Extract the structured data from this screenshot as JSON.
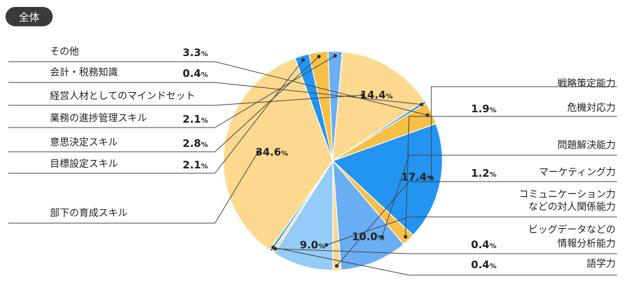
{
  "badge": "全体",
  "chart_data": {
    "type": "pie",
    "title": "全体",
    "unit": "%",
    "slices": [
      {
        "label": "戦略策定能力",
        "value": 17.4,
        "color": "#2394f1"
      },
      {
        "label": "危機対応力",
        "value": 1.9,
        "color": "#f8bf47"
      },
      {
        "label": "問題解決能力",
        "value": 10.0,
        "color": "#6aaef4"
      },
      {
        "label": "マーケティング力",
        "value": 1.2,
        "color": "#fcd891"
      },
      {
        "label": "コミュニケーション力 などの対人関係能力",
        "value": 9.0,
        "color": "#95ccf7"
      },
      {
        "label": "ビッグデータなどの 情報分析能力",
        "value": 0.4,
        "color": "#fcd891"
      },
      {
        "label": "語学力",
        "value": 0.4,
        "color": "#2394f1"
      },
      {
        "label": "部下の育成スキル",
        "value": 34.6,
        "color": "#fdd98f"
      },
      {
        "label": "目標設定スキル",
        "value": 2.1,
        "color": "#2394f1"
      },
      {
        "label": "意思決定スキル",
        "value": 2.8,
        "color": "#f8bf47"
      },
      {
        "label": "業務の進捗管理スキル",
        "value": 2.1,
        "color": "#6aaef4"
      },
      {
        "label": "経営人材としてのマインドセット",
        "value": 14.4,
        "color": "#fdd98f"
      },
      {
        "label": "会計・税務知識",
        "value": 0.4,
        "color": "#2394f1"
      },
      {
        "label": "その他",
        "value": 3.3,
        "color": "#f8bf47"
      }
    ]
  }
}
